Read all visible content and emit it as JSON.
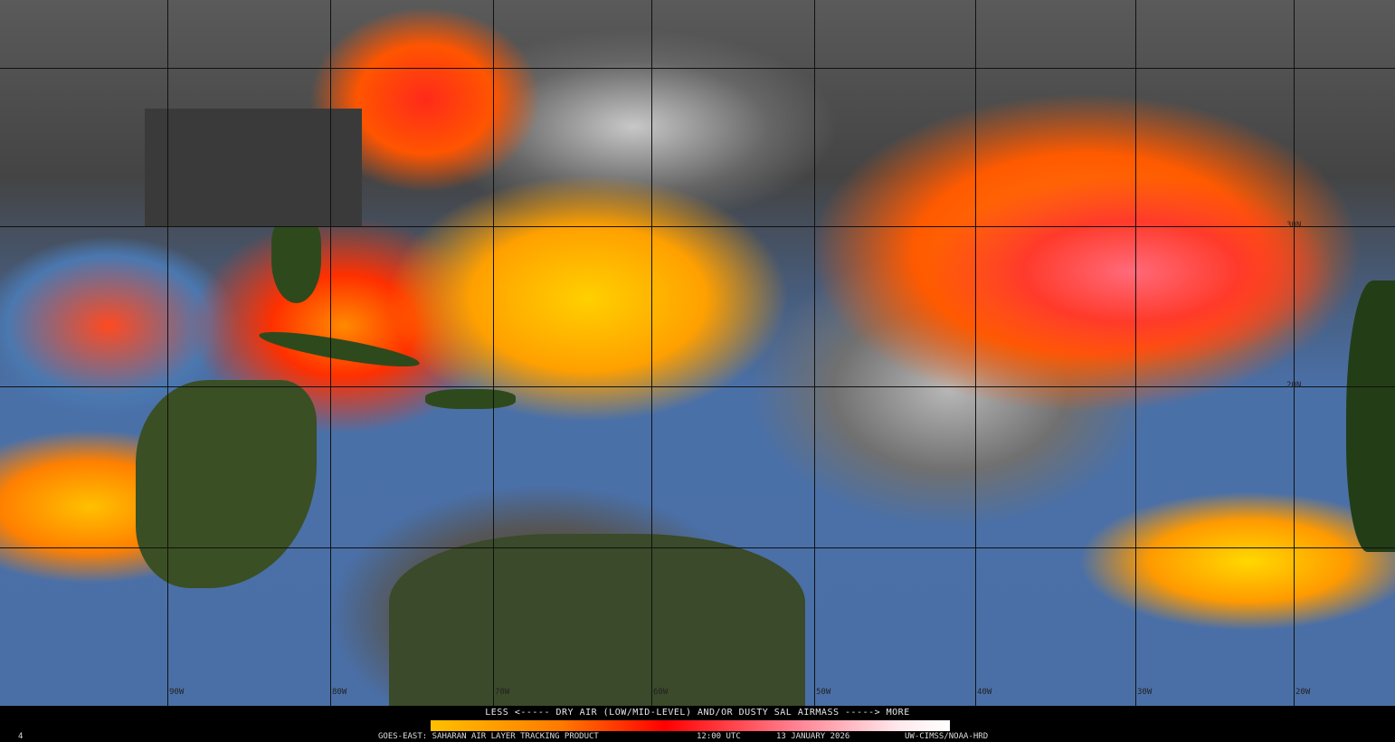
{
  "map": {
    "longitude_labels": [
      "90W",
      "80W",
      "70W",
      "60W",
      "50W",
      "40W",
      "30W",
      "20W"
    ],
    "latitude_labels": [
      "30N",
      "20N"
    ]
  },
  "legend": {
    "title": "LESS <----- DRY AIR (LOW/MID-LEVEL) AND/OR DUSTY SAL AIRMASS -----> MORE",
    "colors": [
      "#ffc000",
      "#ff7a00",
      "#ff0000",
      "#ff8090",
      "#ffffff"
    ]
  },
  "footer": {
    "corner_mark": "4",
    "product": "GOES-EAST: SAHARAN AIR LAYER TRACKING PRODUCT",
    "time": "12:00 UTC",
    "date": "13 JANUARY 2026",
    "credit": "UW-CIMSS/NOAA-HRD"
  }
}
